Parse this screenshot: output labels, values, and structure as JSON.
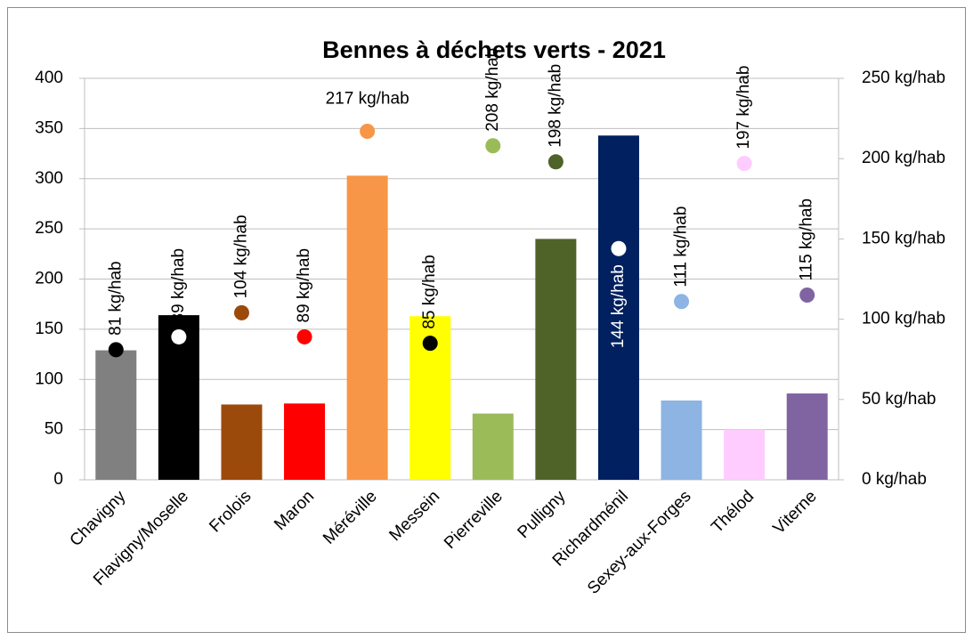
{
  "chart_data": {
    "type": "bar",
    "title": "Bennes à déchets verts - 2021",
    "categories": [
      "Chavigny",
      "Flavigny/Moselle",
      "Frolois",
      "Maron",
      "Méréville",
      "Messein",
      "Pierreville",
      "Pulligny",
      "Richardménil",
      "Sexey-aux-Forges",
      "Thélod",
      "Viterne"
    ],
    "series": [
      {
        "type": "bar",
        "colors": [
          "#808080",
          "#000000",
          "#9c4a0c",
          "#ff0000",
          "#f79646",
          "#ffff00",
          "#9bbb59",
          "#4f6228",
          "#002060",
          "#8db4e2",
          "#ffccff",
          "#8064a2"
        ],
        "values": [
          129,
          164,
          75,
          76,
          303,
          163,
          66,
          240,
          343,
          79,
          50,
          86
        ]
      },
      {
        "type": "scatter",
        "axis": "y2",
        "colors": [
          "#000000",
          "#ffffff",
          "#9c4a0c",
          "#ff0000",
          "#f79646",
          "#000000",
          "#9bbb59",
          "#4f6228",
          "#ffffff",
          "#8db4e2",
          "#ffccff",
          "#8064a2"
        ],
        "values": [
          81,
          89,
          104,
          89,
          217,
          85,
          208,
          198,
          144,
          111,
          197,
          115
        ],
        "value_labels": [
          "81 kg/hab",
          "89 kg/hab",
          "104 kg/hab",
          "89 kg/hab",
          "217 kg/hab",
          "85 kg/hab",
          "208 kg/hab",
          "198 kg/hab",
          "144 kg/hab",
          "111 kg/hab",
          "197 kg/hab",
          "115 kg/hab"
        ]
      }
    ],
    "ylim": [
      0,
      400
    ],
    "yticks": [
      0,
      50,
      100,
      150,
      200,
      250,
      300,
      350,
      400
    ],
    "y2lim": [
      0,
      250
    ],
    "y2ticks": [
      {
        "value": 0,
        "label": "0 kg/hab"
      },
      {
        "value": 50,
        "label": "50 kg/hab"
      },
      {
        "value": 100,
        "label": "100 kg/hab"
      },
      {
        "value": 150,
        "label": "150 kg/hab"
      },
      {
        "value": 200,
        "label": "200 kg/hab"
      },
      {
        "value": 250,
        "label": "250 kg/hab"
      }
    ],
    "grid": true
  }
}
